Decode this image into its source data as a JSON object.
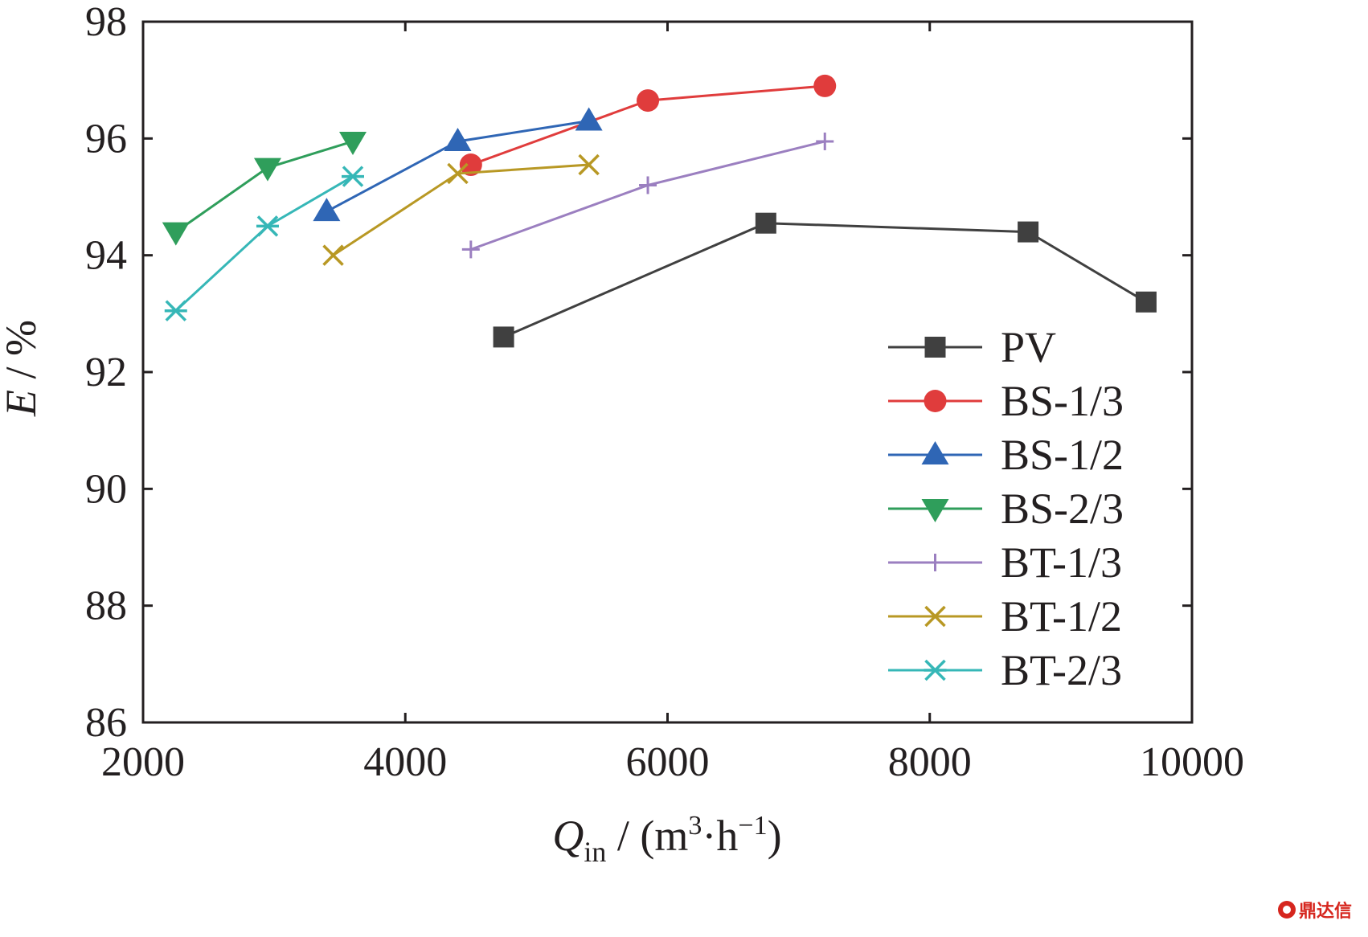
{
  "chart_data": {
    "type": "line",
    "title": "",
    "xlabel": {
      "symbol": "Q",
      "subscript": "in",
      "unit_prefix": " / (m",
      "unit_sup1": "3",
      "unit_mid": "·h",
      "unit_sup2": "−1",
      "unit_suffix": ")"
    },
    "ylabel": "E / %",
    "xlim": [
      2000,
      10000
    ],
    "ylim": [
      86,
      98
    ],
    "xticks": [
      2000,
      4000,
      6000,
      8000,
      10000
    ],
    "yticks": [
      86,
      88,
      90,
      92,
      94,
      96,
      98
    ],
    "legend_position": "bottom-right",
    "series": [
      {
        "name": "PV",
        "color": "#404040",
        "marker": "square",
        "x": [
          4750,
          6750,
          8750,
          9650
        ],
        "y": [
          92.6,
          94.55,
          94.4,
          93.2
        ]
      },
      {
        "name": "BS-1/3",
        "color": "#e03c3c",
        "marker": "circle",
        "x": [
          4500,
          5850,
          7200
        ],
        "y": [
          95.55,
          96.65,
          96.9
        ]
      },
      {
        "name": "BS-1/2",
        "color": "#2f66b5",
        "marker": "triangle-up",
        "x": [
          3400,
          4400,
          5400
        ],
        "y": [
          94.75,
          95.95,
          96.3
        ]
      },
      {
        "name": "BS-2/3",
        "color": "#2f9e5b",
        "marker": "triangle-down",
        "x": [
          2250,
          2950,
          3600
        ],
        "y": [
          94.4,
          95.5,
          95.95
        ]
      },
      {
        "name": "BT-1/3",
        "color": "#9b7fc0",
        "marker": "plus",
        "x": [
          4500,
          5850,
          7200
        ],
        "y": [
          94.1,
          95.2,
          95.95
        ]
      },
      {
        "name": "BT-1/2",
        "color": "#b89824",
        "marker": "x",
        "x": [
          3450,
          4400,
          5400
        ],
        "y": [
          94.0,
          95.4,
          95.55
        ]
      },
      {
        "name": "BT-2/3",
        "color": "#36b7b7",
        "marker": "star",
        "x": [
          2250,
          2950,
          3600
        ],
        "y": [
          93.05,
          94.5,
          95.35
        ]
      }
    ]
  },
  "watermark": {
    "text": "鼎达信"
  }
}
